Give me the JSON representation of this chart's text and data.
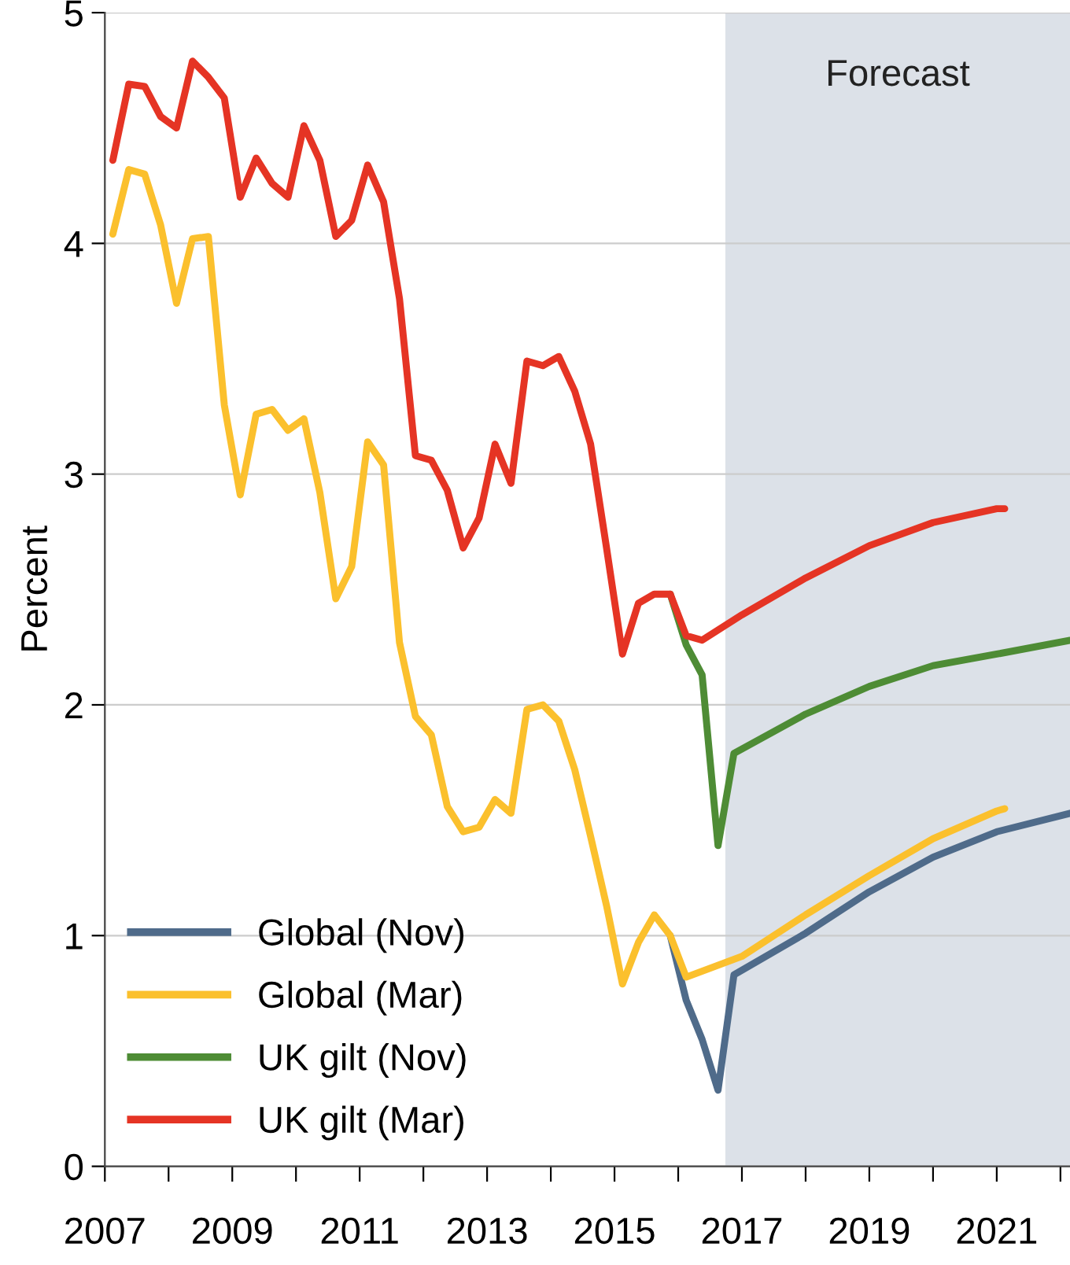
{
  "chart_data": {
    "type": "line",
    "ylabel": "Percent",
    "xlim": [
      2007,
      2022.15
    ],
    "ylim": [
      0,
      5
    ],
    "xticks": [
      {
        "value": 2007,
        "label": "2007"
      },
      {
        "value": 2008,
        "label": null
      },
      {
        "value": 2009,
        "label": "2009"
      },
      {
        "value": 2010,
        "label": null
      },
      {
        "value": 2011,
        "label": "2011"
      },
      {
        "value": 2012,
        "label": null
      },
      {
        "value": 2013,
        "label": "2013"
      },
      {
        "value": 2014,
        "label": null
      },
      {
        "value": 2015,
        "label": "2015"
      },
      {
        "value": 2016,
        "label": null
      },
      {
        "value": 2017,
        "label": "2017"
      },
      {
        "value": 2018,
        "label": null
      },
      {
        "value": 2019,
        "label": "2019"
      },
      {
        "value": 2020,
        "label": null
      },
      {
        "value": 2021,
        "label": "2021"
      },
      {
        "value": 2022,
        "label": null
      }
    ],
    "yticks": [
      0,
      1,
      2,
      3,
      4,
      5
    ],
    "grid": "y",
    "legend": "bottom left",
    "line_style": "solid",
    "marker": "none",
    "bands": [
      {
        "axis": "x",
        "from": 2016.74,
        "to": 2022.15,
        "label": "Forecast",
        "color": "#dce1e8"
      }
    ],
    "series": [
      {
        "name": "Global (Nov)",
        "color": "#4f6b8a",
        "x": [
          2015.875,
          2016.125,
          2016.375,
          2016.625,
          2016.875,
          2018,
          2019,
          2020,
          2021,
          2022.15
        ],
        "values": [
          1.0,
          0.72,
          0.55,
          0.33,
          0.83,
          1.01,
          1.19,
          1.34,
          1.45,
          1.53
        ]
      },
      {
        "name": "Global (Mar)",
        "color": "#fbc02d",
        "x": [
          2007.125,
          2007.375,
          2007.625,
          2007.875,
          2008.125,
          2008.375,
          2008.625,
          2008.875,
          2009.125,
          2009.375,
          2009.625,
          2009.875,
          2010.125,
          2010.375,
          2010.625,
          2010.875,
          2011.125,
          2011.375,
          2011.625,
          2011.875,
          2012.125,
          2012.375,
          2012.625,
          2012.875,
          2013.125,
          2013.375,
          2013.625,
          2013.875,
          2014.125,
          2014.375,
          2014.625,
          2014.875,
          2015.125,
          2015.375,
          2015.625,
          2015.875,
          2016.125,
          2017,
          2018,
          2019,
          2020,
          2021,
          2021.125
        ],
        "values": [
          4.04,
          4.32,
          4.3,
          4.08,
          3.74,
          4.02,
          4.03,
          3.3,
          2.91,
          3.26,
          3.28,
          3.19,
          3.24,
          2.92,
          2.46,
          2.6,
          3.14,
          3.04,
          2.27,
          1.95,
          1.87,
          1.56,
          1.45,
          1.47,
          1.59,
          1.53,
          1.98,
          2.0,
          1.93,
          1.72,
          1.43,
          1.13,
          0.79,
          0.97,
          1.09,
          1.0,
          0.82,
          0.91,
          1.09,
          1.26,
          1.42,
          1.54,
          1.55
        ]
      },
      {
        "name": "UK gilt (Nov)",
        "color": "#4e8c35",
        "x": [
          2015.875,
          2016.125,
          2016.375,
          2016.625,
          2016.875,
          2018,
          2019,
          2020,
          2021,
          2022.15
        ],
        "values": [
          2.48,
          2.26,
          2.13,
          1.39,
          1.79,
          1.96,
          2.08,
          2.17,
          2.22,
          2.28
        ]
      },
      {
        "name": "UK gilt (Mar)",
        "color": "#e53424",
        "x": [
          2007.125,
          2007.375,
          2007.625,
          2007.875,
          2008.125,
          2008.375,
          2008.625,
          2008.875,
          2009.125,
          2009.375,
          2009.625,
          2009.875,
          2010.125,
          2010.375,
          2010.625,
          2010.875,
          2011.125,
          2011.375,
          2011.625,
          2011.875,
          2012.125,
          2012.375,
          2012.625,
          2012.875,
          2013.125,
          2013.375,
          2013.625,
          2013.875,
          2014.125,
          2014.375,
          2014.625,
          2014.875,
          2015.125,
          2015.375,
          2015.625,
          2015.875,
          2016.125,
          2016.375,
          2017,
          2018,
          2019,
          2020,
          2021,
          2021.125
        ],
        "values": [
          4.36,
          4.69,
          4.68,
          4.55,
          4.5,
          4.79,
          4.72,
          4.63,
          4.2,
          4.37,
          4.26,
          4.2,
          4.51,
          4.36,
          4.03,
          4.1,
          4.34,
          4.18,
          3.76,
          3.08,
          3.06,
          2.93,
          2.68,
          2.81,
          3.13,
          2.96,
          3.49,
          3.47,
          3.51,
          3.36,
          3.13,
          2.68,
          2.22,
          2.44,
          2.48,
          2.48,
          2.3,
          2.28,
          2.39,
          2.55,
          2.69,
          2.79,
          2.85,
          2.85
        ]
      }
    ]
  }
}
